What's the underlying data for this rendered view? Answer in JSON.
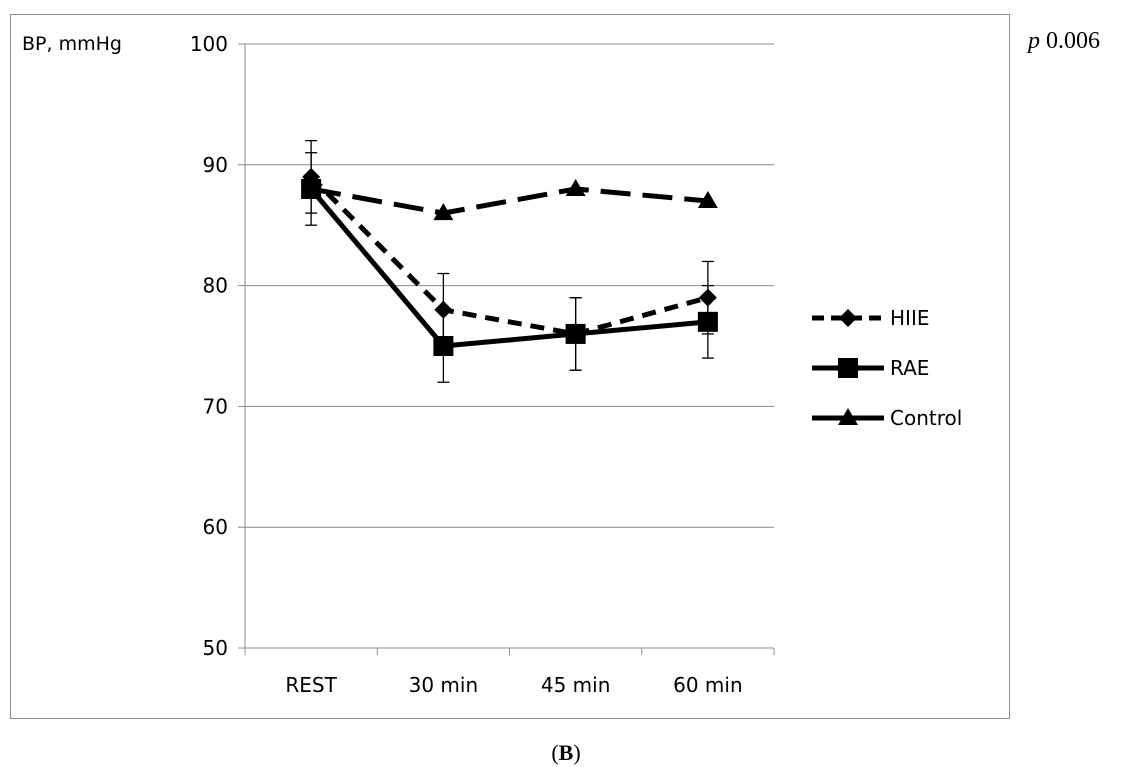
{
  "annotation": {
    "p_symbol": "p",
    "p_value": "0.006"
  },
  "panel_label": {
    "open": "(",
    "letter": "B",
    "close": ")"
  },
  "chart_data": {
    "type": "line",
    "ylabel": "BP, mmHg",
    "ylim": [
      50,
      100
    ],
    "yticks": [
      50,
      60,
      70,
      80,
      90,
      100
    ],
    "grid": true,
    "legend_position": "right",
    "categories": [
      "REST",
      "30 min",
      "45 min",
      "60 min"
    ],
    "series": [
      {
        "name": "HIIE",
        "marker": "diamond",
        "line_style": "dashed",
        "values": [
          89,
          78,
          76,
          79
        ],
        "error": [
          3,
          3,
          3,
          3
        ]
      },
      {
        "name": "RAE",
        "marker": "square",
        "line_style": "solid",
        "values": [
          88,
          75,
          76,
          77
        ],
        "error": [
          3,
          3,
          3,
          3
        ]
      },
      {
        "name": "Control",
        "marker": "triangle",
        "line_style": "long-dashed",
        "values": [
          88,
          86,
          88,
          87
        ],
        "error": [
          0,
          0,
          0,
          0
        ]
      }
    ]
  }
}
